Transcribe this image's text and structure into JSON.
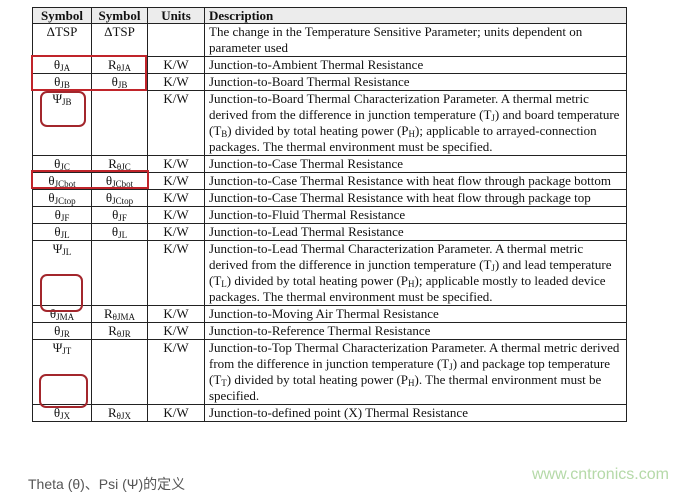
{
  "table": {
    "headers": [
      "Symbol",
      "Symbol",
      "Units",
      "Description"
    ],
    "rows": [
      {
        "s1": {
          "b": "ΔTSP",
          "s": ""
        },
        "s2": {
          "b": "ΔTSP",
          "s": ""
        },
        "u": "",
        "d": [
          {
            "t": "The change in the Temperature Sensitive Parameter; units dependent on parameter used"
          }
        ]
      },
      {
        "s1": {
          "b": "θ",
          "s": "JA"
        },
        "s2": {
          "b": "R",
          "s": "θJA"
        },
        "u": "K/W",
        "d": [
          {
            "t": "Junction-to-Ambient Thermal Resistance"
          }
        ]
      },
      {
        "s1": {
          "b": "θ",
          "s": "JB"
        },
        "s2": {
          "b": "θ",
          "s": "JB"
        },
        "u": "K/W",
        "d": [
          {
            "t": "Junction-to-Board Thermal Resistance"
          }
        ]
      },
      {
        "s1": {
          "b": "Ψ",
          "s": "JB"
        },
        "s2": {
          "b": "",
          "s": ""
        },
        "u": "K/W",
        "d": [
          {
            "t": "Junction-to-Board Thermal Characterization Parameter. A thermal metric derived from the difference in junction temperature (T"
          },
          {
            "sub": "J"
          },
          {
            "t": ") and board temperature (T"
          },
          {
            "sub": "B"
          },
          {
            "t": ") divided by total heating power (P"
          },
          {
            "sub": "H"
          },
          {
            "t": "); applicable to arrayed-connection packages. The thermal environment must be specified."
          }
        ]
      },
      {
        "s1": {
          "b": "θ",
          "s": "JC"
        },
        "s2": {
          "b": "R",
          "s": "θJC"
        },
        "u": "K/W",
        "d": [
          {
            "t": "Junction-to-Case Thermal Resistance"
          }
        ]
      },
      {
        "s1": {
          "b": "θ",
          "s": "JCbot"
        },
        "s2": {
          "b": "θ",
          "s": "JCbot"
        },
        "u": "K/W",
        "d": [
          {
            "t": "Junction-to-Case Thermal Resistance with heat flow through package bottom"
          }
        ]
      },
      {
        "s1": {
          "b": "θ",
          "s": "JCtop"
        },
        "s2": {
          "b": "θ",
          "s": "JCtop"
        },
        "u": "K/W",
        "d": [
          {
            "t": "Junction-to-Case Thermal Resistance with heat flow through package top"
          }
        ]
      },
      {
        "s1": {
          "b": "θ",
          "s": "JF"
        },
        "s2": {
          "b": "θ",
          "s": "JF"
        },
        "u": "K/W",
        "d": [
          {
            "t": "Junction-to-Fluid Thermal Resistance"
          }
        ]
      },
      {
        "s1": {
          "b": "θ",
          "s": "JL"
        },
        "s2": {
          "b": "θ",
          "s": "JL"
        },
        "u": "K/W",
        "d": [
          {
            "t": "Junction-to-Lead Thermal Resistance"
          }
        ]
      },
      {
        "s1": {
          "b": "Ψ",
          "s": "JL"
        },
        "s2": {
          "b": "",
          "s": ""
        },
        "u": "K/W",
        "d": [
          {
            "t": "Junction-to-Lead Thermal Characterization Parameter. A thermal metric derived from the difference in junction temperature (T"
          },
          {
            "sub": "J"
          },
          {
            "t": ") and lead temperature (T"
          },
          {
            "sub": "L"
          },
          {
            "t": ") divided by total heating power (P"
          },
          {
            "sub": "H"
          },
          {
            "t": "); applicable mostly to leaded device packages. The thermal environment must be specified."
          }
        ]
      },
      {
        "s1": {
          "b": "θ",
          "s": "JMA"
        },
        "s2": {
          "b": "R",
          "s": "θJMA"
        },
        "u": "K/W",
        "d": [
          {
            "t": "Junction-to-Moving Air Thermal Resistance"
          }
        ]
      },
      {
        "s1": {
          "b": "θ",
          "s": "JR"
        },
        "s2": {
          "b": "R",
          "s": "θJR"
        },
        "u": "K/W",
        "d": [
          {
            "t": "Junction-to-Reference Thermal Resistance"
          }
        ]
      },
      {
        "s1": {
          "b": "Ψ",
          "s": "JT"
        },
        "s2": {
          "b": "",
          "s": ""
        },
        "u": "K/W",
        "d": [
          {
            "t": "Junction-to-Top Thermal Characterization Parameter. A thermal metric derived from the difference in junction temperature (T"
          },
          {
            "sub": "J"
          },
          {
            "t": ") and package top temperature (T"
          },
          {
            "sub": "T"
          },
          {
            "t": ") divided by total heating power (P"
          },
          {
            "sub": "H"
          },
          {
            "t": "). The thermal environment must be specified."
          }
        ]
      },
      {
        "s1": {
          "b": "θ",
          "s": "JX"
        },
        "s2": {
          "b": "R",
          "s": "θJX"
        },
        "u": "K/W",
        "d": [
          {
            "t": "Junction-to-defined point (X) Thermal Resistance"
          }
        ]
      }
    ]
  },
  "caption": "Theta (θ)、Psi (Ψ)的定义",
  "watermark": "www.cntronics.com",
  "highlight_color": "#c0242a"
}
